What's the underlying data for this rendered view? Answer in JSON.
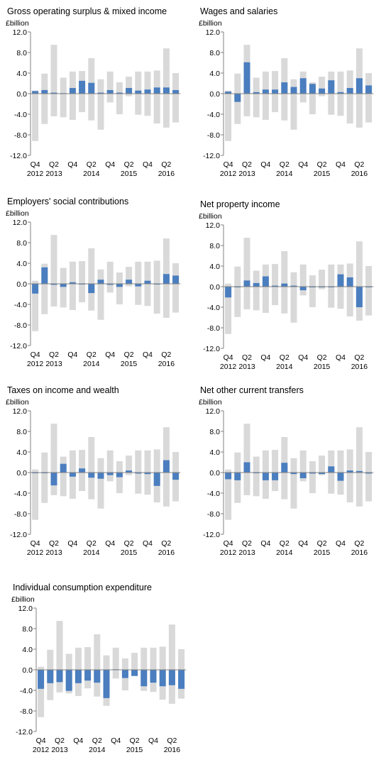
{
  "colors": {
    "range": "#d9d9d9",
    "value": "#4a7ebf",
    "axis": "#808080"
  },
  "axis": {
    "ylim": [
      -12.0,
      12.0
    ],
    "yticks": [
      "12.0",
      "8.0",
      "4.0",
      "0.0",
      "-4.0",
      "-8.0",
      "-12.0"
    ],
    "unit": "£billion"
  },
  "quarters": [
    "Q4 2012",
    "Q1 2013",
    "Q2 2013",
    "Q3 2013",
    "Q4 2013",
    "Q1 2014",
    "Q2 2014",
    "Q3 2014",
    "Q4 2014",
    "Q1 2015",
    "Q2 2015",
    "Q3 2015",
    "Q4 2015",
    "Q1 2016",
    "Q2 2016",
    "Q3 2016"
  ],
  "xlabels": {
    "top": [
      "Q4",
      "Q2",
      "Q4",
      "Q2",
      "Q4",
      "Q2",
      "Q4",
      "Q2"
    ],
    "bottom": [
      "2012",
      "2013",
      "2014",
      "2015",
      "2016"
    ]
  },
  "chart_data": [
    {
      "type": "bar",
      "title": "Gross operating surplus & mixed income",
      "ylabel": "£billion",
      "range_low": [
        -9.2,
        -5.9,
        -4.4,
        -4.6,
        -5.1,
        -3.6,
        -5.2,
        -7.0,
        -1.7,
        -4.0,
        -0.5,
        -4.1,
        -4.3,
        -5.8,
        -6.6,
        -5.6
      ],
      "range_high": [
        0.6,
        3.9,
        9.5,
        3.1,
        4.3,
        4.4,
        6.9,
        2.8,
        4.3,
        2.2,
        3.3,
        4.3,
        4.3,
        4.5,
        8.8,
        4.0
      ],
      "values": [
        0.5,
        0.7,
        0.2,
        0.1,
        1.1,
        2.5,
        2.1,
        0.2,
        0.7,
        0.2,
        1.1,
        0.6,
        0.8,
        1.2,
        1.2,
        0.7
      ]
    },
    {
      "type": "bar",
      "title": "Wages and salaries",
      "ylabel": "£billion",
      "range_low": [
        -9.2,
        -5.9,
        -4.4,
        -4.6,
        -5.1,
        -3.6,
        -5.2,
        -7.0,
        -1.7,
        -4.0,
        -0.5,
        -4.1,
        -4.3,
        -5.8,
        -6.6,
        -5.6
      ],
      "range_high": [
        0.6,
        3.9,
        9.5,
        3.1,
        4.3,
        4.4,
        6.9,
        2.8,
        4.3,
        2.2,
        3.3,
        4.3,
        4.3,
        4.5,
        8.8,
        4.0
      ],
      "values": [
        0.4,
        -1.6,
        6.1,
        0.3,
        0.8,
        0.8,
        2.2,
        1.3,
        3.0,
        1.9,
        1.0,
        2.6,
        0.3,
        1.1,
        3.0,
        1.6
      ]
    },
    {
      "type": "bar",
      "title": "Employers' social contributions",
      "ylabel": "£billion",
      "range_low": [
        -9.2,
        -5.9,
        -4.4,
        -4.6,
        -5.1,
        -3.6,
        -5.2,
        -7.0,
        -1.7,
        -4.0,
        -0.5,
        -4.1,
        -4.3,
        -5.8,
        -6.6,
        -5.6
      ],
      "range_high": [
        0.6,
        3.9,
        9.5,
        3.1,
        4.3,
        4.4,
        6.9,
        2.8,
        4.3,
        2.2,
        3.3,
        4.3,
        4.3,
        4.5,
        8.8,
        4.0
      ],
      "values": [
        -1.9,
        3.2,
        -0.2,
        -0.6,
        0.3,
        -0.1,
        -1.8,
        0.8,
        -0.2,
        -0.6,
        0.8,
        -0.5,
        0.6,
        -0.1,
        1.9,
        1.6
      ]
    },
    {
      "type": "bar",
      "title": "Net property income",
      "ylabel": "£billion",
      "range_low": [
        -9.2,
        -5.9,
        -4.4,
        -4.6,
        -5.1,
        -3.6,
        -5.2,
        -7.0,
        -1.7,
        -4.0,
        -0.5,
        -4.1,
        -4.3,
        -5.8,
        -6.6,
        -5.6
      ],
      "range_high": [
        0.6,
        3.9,
        9.5,
        3.1,
        4.3,
        4.4,
        6.9,
        2.8,
        4.3,
        2.2,
        3.3,
        4.3,
        4.3,
        4.5,
        8.8,
        4.0
      ],
      "values": [
        -2.1,
        -0.1,
        1.2,
        0.7,
        2.0,
        0.2,
        0.6,
        0.2,
        -0.7,
        -0.1,
        -0.1,
        0.0,
        2.4,
        1.8,
        -4.0,
        -0.1
      ]
    },
    {
      "type": "bar",
      "title": "Taxes on income and wealth",
      "ylabel": "£billion",
      "range_low": [
        -9.2,
        -5.9,
        -4.4,
        -4.6,
        -5.1,
        -3.6,
        -5.2,
        -7.0,
        -1.7,
        -4.0,
        -0.5,
        -4.1,
        -4.3,
        -5.8,
        -6.6,
        -5.6
      ],
      "range_high": [
        0.6,
        3.9,
        9.5,
        3.1,
        4.3,
        4.4,
        6.9,
        2.8,
        4.3,
        2.2,
        3.3,
        4.3,
        4.3,
        4.5,
        8.8,
        4.0
      ],
      "values": [
        0.0,
        0.0,
        -2.5,
        1.7,
        -0.8,
        0.8,
        -1.0,
        -1.2,
        -0.5,
        -0.9,
        0.4,
        -0.2,
        -0.3,
        -2.6,
        2.4,
        -1.4
      ]
    },
    {
      "type": "bar",
      "title": "Net other current transfers",
      "ylabel": "£billion",
      "range_low": [
        -9.2,
        -5.9,
        -4.4,
        -4.6,
        -5.1,
        -3.6,
        -5.2,
        -7.0,
        -1.7,
        -4.0,
        -0.5,
        -4.1,
        -4.3,
        -5.8,
        -6.6,
        -5.6
      ],
      "range_high": [
        0.6,
        3.9,
        9.5,
        3.1,
        4.3,
        4.4,
        6.9,
        2.8,
        4.3,
        2.2,
        3.3,
        4.3,
        4.3,
        4.5,
        8.8,
        4.0
      ],
      "values": [
        -1.3,
        -1.5,
        2.0,
        -0.1,
        -1.5,
        -1.5,
        1.9,
        -0.3,
        -1.1,
        -0.2,
        -0.3,
        1.2,
        -1.6,
        0.4,
        0.3,
        -0.2
      ]
    },
    {
      "type": "bar",
      "title": "Individual consumption expenditure",
      "ylabel": "£billion",
      "range_low": [
        -9.2,
        -5.9,
        -4.4,
        -4.6,
        -5.1,
        -3.6,
        -5.2,
        -7.0,
        -1.7,
        -4.0,
        -0.5,
        -4.1,
        -4.3,
        -5.8,
        -6.6,
        -5.6
      ],
      "range_high": [
        0.6,
        3.9,
        9.5,
        3.1,
        4.3,
        4.4,
        6.9,
        2.8,
        4.3,
        2.2,
        3.3,
        4.3,
        4.3,
        4.5,
        8.8,
        4.0
      ],
      "values": [
        -3.7,
        -2.6,
        -2.4,
        -4.1,
        -2.6,
        -2.1,
        -2.5,
        -5.5,
        0.1,
        -1.6,
        -1.2,
        -3.2,
        -2.5,
        -3.2,
        -3.0,
        -3.7
      ]
    }
  ]
}
